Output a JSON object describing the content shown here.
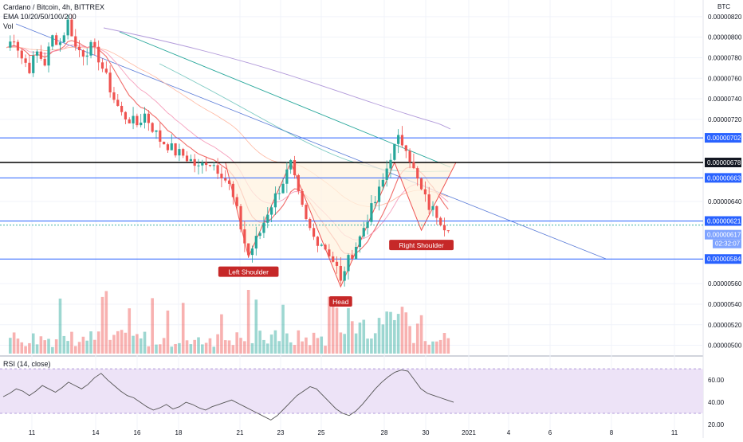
{
  "header": {
    "symbol_line": "Cardano / Bitcoin, 4h, BITTREX",
    "ema_line": "EMA 10/20/50/100/200",
    "vol_line": "Vol",
    "currency": "BTC",
    "rsi_line": "RSI (14, close)"
  },
  "colors": {
    "up": "#26a69a",
    "down": "#ef5350",
    "ema": "#ef5350",
    "level_line": "#2962ff",
    "resistance_line": "#000000",
    "pattern_fill": "#fff3e0",
    "pattern_stroke": "#ef5350",
    "rsi_band": "#ede3f7",
    "rsi_line": "#555555",
    "badge_blue": "#2962ff",
    "badge_black": "#131722",
    "badge_red": "#c62828"
  },
  "chart_data": [
    {
      "type": "candlestick",
      "title": "Cardano / Bitcoin, 4h, BITTREX",
      "ylabel": "BTC",
      "ylim": [
        4.95e-06,
        8.3e-06
      ],
      "y_ticks": [
        "0.00000820",
        "0.00000800",
        "0.00000780",
        "0.00000760",
        "0.00000740",
        "0.00000720",
        "0.00000640",
        "0.00000560",
        "0.00000540",
        "0.00000520",
        "0.00000500"
      ],
      "x_ticks": [
        "11",
        "14",
        "16",
        "18",
        "21",
        "23",
        "25",
        "28",
        "30",
        "2021",
        "4",
        "6",
        "8",
        "11"
      ],
      "close_path": [
        {
          "x": 0,
          "y": 7.9e-06
        },
        {
          "x": 2,
          "y": 8e-06
        },
        {
          "x": 4,
          "y": 7.8e-06
        },
        {
          "x": 6,
          "y": 7.7e-06
        },
        {
          "x": 8,
          "y": 7.85e-06
        },
        {
          "x": 10,
          "y": 7.75e-06
        },
        {
          "x": 12,
          "y": 8e-06
        },
        {
          "x": 14,
          "y": 7.95e-06
        },
        {
          "x": 16,
          "y": 8.15e-06
        },
        {
          "x": 17,
          "y": 8.05e-06
        },
        {
          "x": 18,
          "y": 7.9e-06
        },
        {
          "x": 20,
          "y": 7.85e-06
        },
        {
          "x": 22,
          "y": 7.9e-06
        },
        {
          "x": 24,
          "y": 7.8e-06
        },
        {
          "x": 26,
          "y": 7.6e-06
        },
        {
          "x": 28,
          "y": 7.4e-06
        },
        {
          "x": 30,
          "y": 7.25e-06
        },
        {
          "x": 32,
          "y": 7.2e-06
        },
        {
          "x": 34,
          "y": 7.15e-06
        },
        {
          "x": 36,
          "y": 7.25e-06
        },
        {
          "x": 38,
          "y": 7.12e-06
        },
        {
          "x": 40,
          "y": 7e-06
        },
        {
          "x": 42,
          "y": 6.95e-06
        },
        {
          "x": 44,
          "y": 6.88e-06
        },
        {
          "x": 46,
          "y": 6.85e-06
        },
        {
          "x": 48,
          "y": 6.8e-06
        },
        {
          "x": 50,
          "y": 6.72e-06
        },
        {
          "x": 52,
          "y": 6.8e-06
        },
        {
          "x": 54,
          "y": 6.76e-06
        },
        {
          "x": 56,
          "y": 6.68e-06
        },
        {
          "x": 58,
          "y": 6.55e-06
        },
        {
          "x": 60,
          "y": 6.3e-06
        },
        {
          "x": 62,
          "y": 6e-06
        },
        {
          "x": 63,
          "y": 5.88e-06
        },
        {
          "x": 64,
          "y": 5.95e-06
        },
        {
          "x": 66,
          "y": 6.1e-06
        },
        {
          "x": 68,
          "y": 6.3e-06
        },
        {
          "x": 70,
          "y": 6.45e-06
        },
        {
          "x": 72,
          "y": 6.6e-06
        },
        {
          "x": 74,
          "y": 6.76e-06
        },
        {
          "x": 75,
          "y": 6.6e-06
        },
        {
          "x": 76,
          "y": 6.45e-06
        },
        {
          "x": 78,
          "y": 6.2e-06
        },
        {
          "x": 80,
          "y": 6.05e-06
        },
        {
          "x": 82,
          "y": 6e-06
        },
        {
          "x": 84,
          "y": 5.9e-06
        },
        {
          "x": 86,
          "y": 5.75e-06
        },
        {
          "x": 87,
          "y": 5.6e-06
        },
        {
          "x": 88,
          "y": 5.75e-06
        },
        {
          "x": 90,
          "y": 5.9e-06
        },
        {
          "x": 92,
          "y": 6.05e-06
        },
        {
          "x": 94,
          "y": 6.25e-06
        },
        {
          "x": 96,
          "y": 6.4e-06
        },
        {
          "x": 98,
          "y": 6.6e-06
        },
        {
          "x": 100,
          "y": 6.85e-06
        },
        {
          "x": 102,
          "y": 7e-06
        },
        {
          "x": 104,
          "y": 6.95e-06
        },
        {
          "x": 106,
          "y": 6.7e-06
        },
        {
          "x": 108,
          "y": 6.5e-06
        },
        {
          "x": 110,
          "y": 6.35e-06
        },
        {
          "x": 112,
          "y": 6.28e-06
        },
        {
          "x": 114,
          "y": 6.17e-06
        }
      ],
      "horizontal_levels": [
        {
          "label": "0.00000702",
          "y": 7.02e-06,
          "kind": "blue"
        },
        {
          "label": "0.00000678",
          "y": 6.78e-06,
          "kind": "black"
        },
        {
          "label": "0.00000663",
          "y": 6.63e-06,
          "kind": "blue"
        },
        {
          "label": "0.00000621",
          "y": 6.21e-06,
          "kind": "blue"
        },
        {
          "label": "0.00000584",
          "y": 5.84e-06,
          "kind": "blue"
        }
      ],
      "last_price": {
        "label": "0.00000617",
        "y": 6.17e-06,
        "timer": "02:32:07"
      },
      "pattern": {
        "name": "inverse head and shoulders",
        "points": [
          {
            "x": 57,
            "y": 6.78e-06
          },
          {
            "x": 63,
            "y": 5.86e-06
          },
          {
            "x": 74,
            "y": 6.78e-06
          },
          {
            "x": 87,
            "y": 5.57e-06
          },
          {
            "x": 101,
            "y": 6.78e-06
          },
          {
            "x": 108,
            "y": 6.12e-06
          },
          {
            "x": 117,
            "y": 6.78e-06
          }
        ],
        "labels": [
          {
            "text": "Left Shoulder",
            "x": 63
          },
          {
            "text": "Head",
            "x": 87
          },
          {
            "text": "Right Shoulder",
            "x": 108
          }
        ]
      }
    },
    {
      "type": "line",
      "title": "RSI (14, close)",
      "ylim": [
        15,
        78
      ],
      "y_ticks": [
        "60.00",
        "40.00",
        "20.00"
      ],
      "band": [
        30,
        70
      ],
      "values": [
        45,
        48,
        52,
        50,
        46,
        50,
        55,
        52,
        49,
        53,
        58,
        55,
        52,
        56,
        62,
        66,
        60,
        55,
        50,
        46,
        44,
        40,
        36,
        33,
        35,
        38,
        34,
        36,
        40,
        38,
        35,
        33,
        36,
        38,
        40,
        42,
        39,
        36,
        33,
        30,
        27,
        24,
        28,
        34,
        40,
        46,
        50,
        54,
        52,
        46,
        40,
        34,
        30,
        28,
        32,
        38,
        45,
        52,
        58,
        63,
        67,
        69,
        68,
        60,
        52,
        48,
        46,
        44,
        42,
        40
      ]
    }
  ]
}
